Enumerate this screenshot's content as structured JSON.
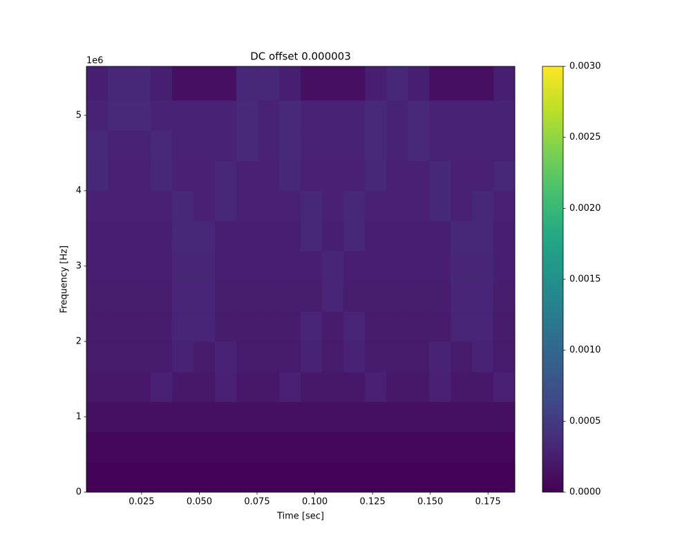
{
  "chart_data": {
    "type": "heatmap",
    "title": "DC offset 0.000003",
    "xlabel": "Time [sec]",
    "ylabel": "Frequency [Hz]",
    "y_offset_label": "1e6",
    "colormap": "viridis",
    "xlim": [
      0.0011,
      0.1866
    ],
    "xticks": [
      0.025,
      {
        "value": 0.05,
        "label": "0.050"
      },
      0.075,
      {
        "value": 0.1,
        "label": "0.100"
      },
      0.125,
      {
        "value": 0.15,
        "label": "0.150"
      },
      0.175
    ],
    "ylim": [
      0,
      5650000
    ],
    "yticks": [
      0,
      {
        "value": 1000000,
        "label": "1"
      },
      {
        "value": 2000000,
        "label": "2"
      },
      {
        "value": 3000000,
        "label": "3"
      },
      {
        "value": 4000000,
        "label": "4"
      },
      {
        "value": 5000000,
        "label": "5"
      }
    ],
    "clim": [
      0,
      0.003
    ],
    "cticks": [
      {
        "value": 0,
        "label": "0.0000"
      },
      {
        "value": 0.0005,
        "label": "0.0005"
      },
      {
        "value": 0.001,
        "label": "0.0010"
      },
      {
        "value": 0.0015,
        "label": "0.0015"
      },
      {
        "value": 0.002,
        "label": "0.0020"
      },
      {
        "value": 0.0025,
        "label": "0.0025"
      },
      {
        "value": 0.003,
        "label": "0.0030"
      }
    ],
    "x": [
      0.0057,
      0.015,
      0.0243,
      0.0336,
      0.0428,
      0.0521,
      0.0614,
      0.0707,
      0.08,
      0.0893,
      0.0985,
      0.1078,
      0.1171,
      0.1264,
      0.1357,
      0.1449,
      0.1542,
      0.1635,
      0.1728,
      0.182
    ],
    "y": [
      200000,
      600000,
      1000000,
      1400000,
      1800000,
      2200000,
      2600000,
      3000000,
      3400000,
      3800000,
      4200000,
      4600000,
      5000000,
      5400000
    ],
    "z": [
      [
        2e-05,
        2e-05,
        2e-05,
        2e-05,
        2e-05,
        2e-05,
        2e-05,
        2e-05,
        2e-05,
        2e-05,
        2e-05,
        2e-05,
        2e-05,
        2e-05,
        2e-05,
        2e-05,
        2e-05,
        2e-05,
        2e-05,
        2e-05
      ],
      [
        5e-05,
        5e-05,
        5e-05,
        5e-05,
        5e-05,
        5e-05,
        5e-05,
        5e-05,
        5e-05,
        5e-05,
        5e-05,
        5e-05,
        5e-05,
        5e-05,
        5e-05,
        5e-05,
        5e-05,
        5e-05,
        5e-05,
        5e-05
      ],
      [
        0.00013,
        0.00013,
        0.00013,
        0.00013,
        0.00013,
        0.00013,
        0.00013,
        0.00013,
        0.00013,
        0.00013,
        0.00013,
        0.00013,
        0.00013,
        0.00013,
        0.00013,
        0.00013,
        0.00013,
        0.00013,
        0.00013,
        0.00013
      ],
      [
        0.0002,
        0.0002,
        0.0002,
        0.00027,
        0.0002,
        0.0002,
        0.00027,
        0.0002,
        0.0002,
        0.00027,
        0.0002,
        0.0002,
        0.0002,
        0.00027,
        0.0002,
        0.0002,
        0.00027,
        0.0002,
        0.0002,
        0.00027
      ],
      [
        0.00022,
        0.00022,
        0.00022,
        0.00022,
        0.00029,
        0.00022,
        0.00029,
        0.00022,
        0.00022,
        0.00022,
        0.00029,
        0.00022,
        0.00029,
        0.00022,
        0.00022,
        0.00022,
        0.00029,
        0.00022,
        0.00029,
        0.00022
      ],
      [
        0.00023,
        0.00023,
        0.00023,
        0.00023,
        0.0003,
        0.0003,
        0.00023,
        0.00023,
        0.00023,
        0.00023,
        0.0003,
        0.00023,
        0.0003,
        0.00023,
        0.00023,
        0.00023,
        0.00023,
        0.0003,
        0.0003,
        0.00023
      ],
      [
        0.00024,
        0.00024,
        0.00024,
        0.00024,
        0.00031,
        0.00031,
        0.00024,
        0.00024,
        0.00024,
        0.00024,
        0.00024,
        0.00031,
        0.00024,
        0.00024,
        0.00024,
        0.00024,
        0.00024,
        0.00031,
        0.00031,
        0.00024
      ],
      [
        0.00025,
        0.00025,
        0.00025,
        0.00025,
        0.00032,
        0.00032,
        0.00025,
        0.00025,
        0.00025,
        0.00025,
        0.00025,
        0.00032,
        0.00025,
        0.00025,
        0.00025,
        0.00025,
        0.00025,
        0.00032,
        0.00032,
        0.00025
      ],
      [
        0.00026,
        0.00026,
        0.00026,
        0.00026,
        0.00033,
        0.00033,
        0.00026,
        0.00026,
        0.00026,
        0.00026,
        0.00033,
        0.00026,
        0.00033,
        0.00026,
        0.00026,
        0.00026,
        0.00026,
        0.00033,
        0.00033,
        0.00026
      ],
      [
        0.00027,
        0.00027,
        0.00027,
        0.00027,
        0.00034,
        0.00027,
        0.00034,
        0.00027,
        0.00027,
        0.00027,
        0.00034,
        0.00027,
        0.00034,
        0.00027,
        0.00027,
        0.00027,
        0.00034,
        0.00027,
        0.00034,
        0.00027
      ],
      [
        0.00034,
        0.00027,
        0.00027,
        0.00034,
        0.00027,
        0.00027,
        0.00034,
        0.00027,
        0.00027,
        0.00034,
        0.00027,
        0.00027,
        0.00027,
        0.00034,
        0.00027,
        0.00027,
        0.00034,
        0.00027,
        0.00027,
        0.00034
      ],
      [
        0.00035,
        0.00028,
        0.00028,
        0.00035,
        0.00028,
        0.00028,
        0.00028,
        0.00035,
        0.00028,
        0.00035,
        0.00028,
        0.00028,
        0.00028,
        0.00035,
        0.00028,
        0.00035,
        0.00028,
        0.00028,
        0.00028,
        0.00028
      ],
      [
        0.00028,
        0.00035,
        0.00035,
        0.00028,
        0.00028,
        0.00028,
        0.00028,
        0.00035,
        0.00028,
        0.00035,
        0.00028,
        0.00028,
        0.00028,
        0.00035,
        0.00028,
        0.00035,
        0.00028,
        0.00028,
        0.00028,
        0.00028
      ],
      [
        0.00026,
        0.00033,
        0.00033,
        0.00026,
        0.00012,
        0.00012,
        0.00012,
        0.00033,
        0.00033,
        0.00026,
        0.00012,
        0.00012,
        0.00012,
        0.00026,
        0.00033,
        0.00026,
        0.00012,
        0.00012,
        0.00012,
        0.00026
      ]
    ]
  }
}
